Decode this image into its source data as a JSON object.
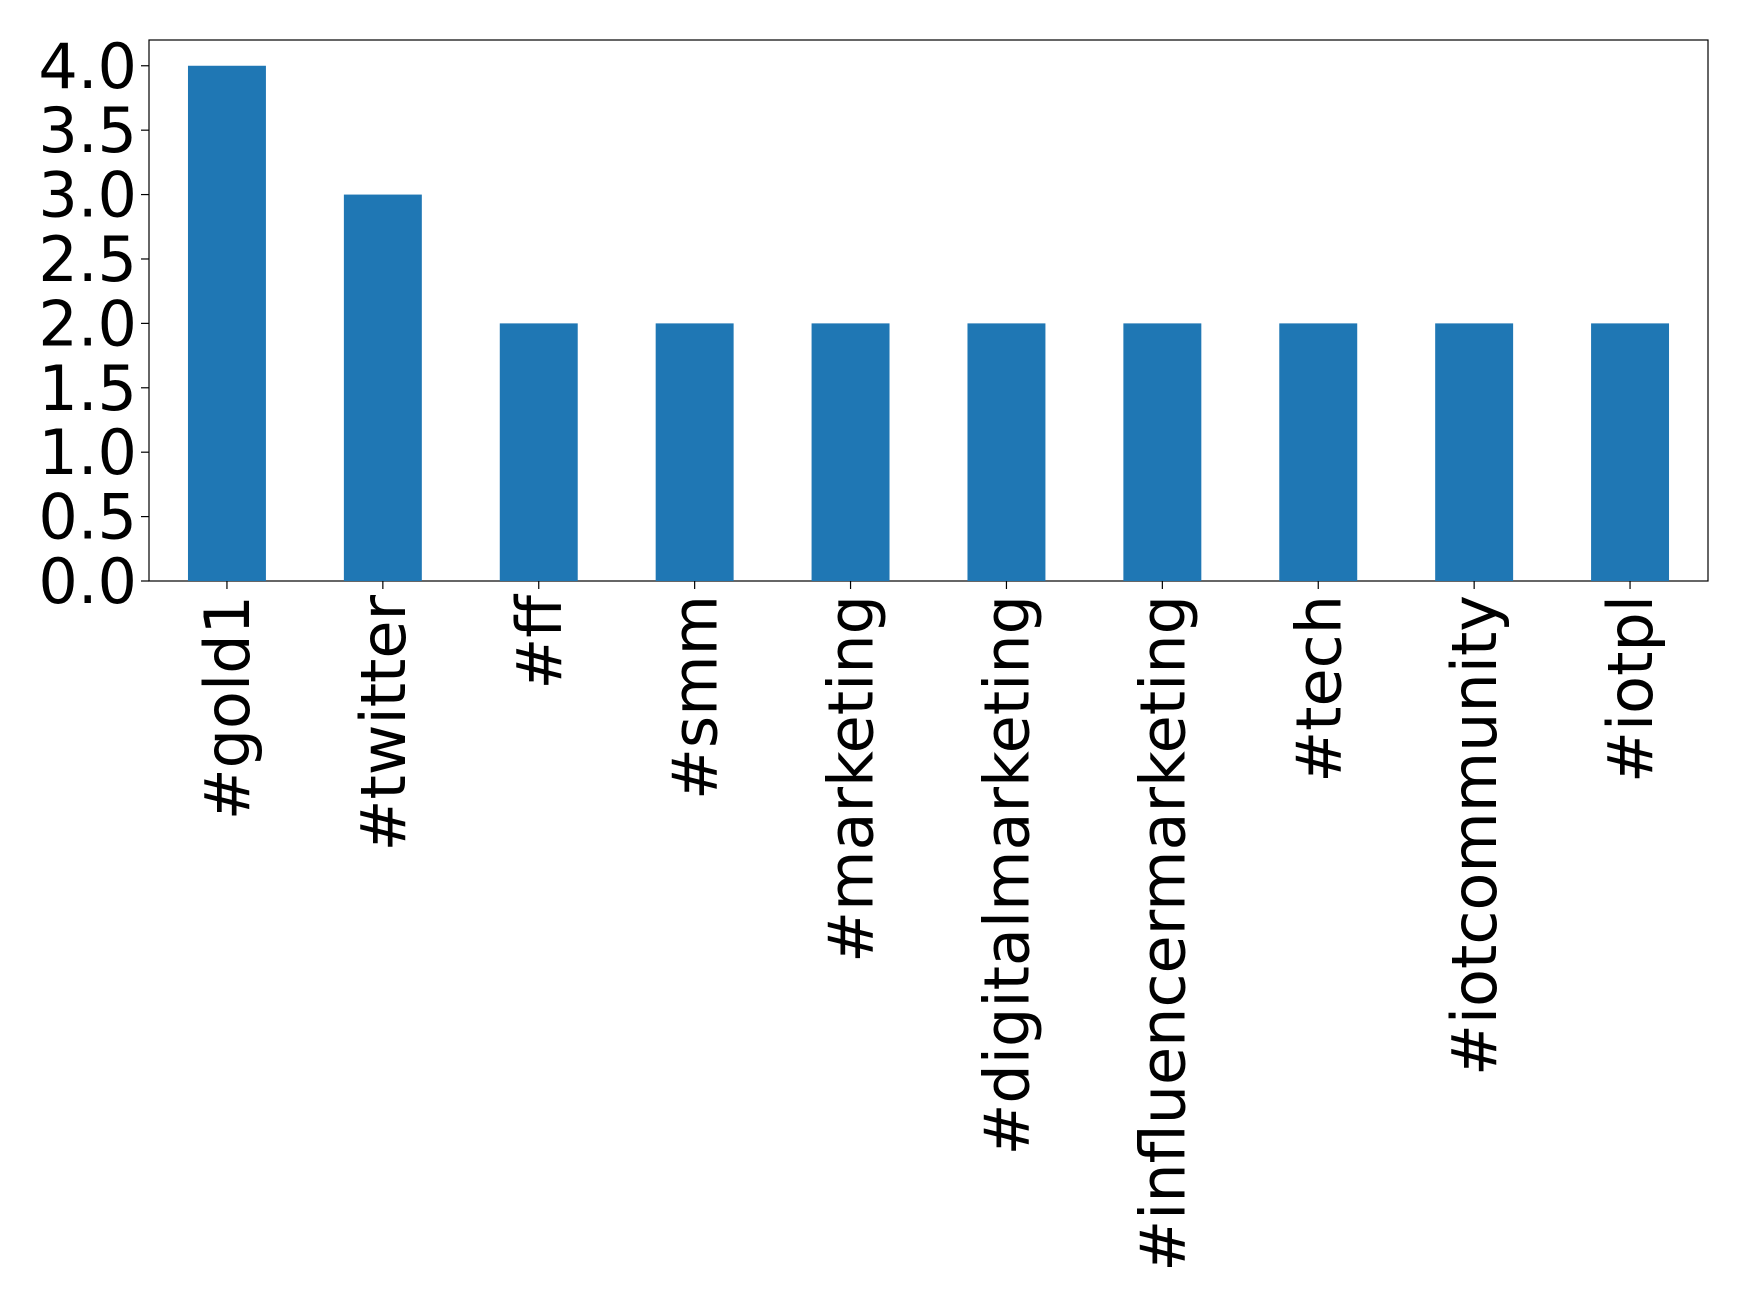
{
  "chart_data": {
    "type": "bar",
    "categories": [
      "#gold1",
      "#twitter",
      "#ff",
      "#smm",
      "#marketing",
      "#digitalmarketing",
      "#influencermarketing",
      "#tech",
      "#iotcommunity",
      "#iotpl"
    ],
    "values": [
      4,
      3,
      2,
      2,
      2,
      2,
      2,
      2,
      2,
      2
    ],
    "color": "#1f77b4",
    "ylim": [
      0,
      4.2
    ],
    "yticks": [
      {
        "value": 0,
        "label": "0.0"
      },
      0.5,
      {
        "value": 1,
        "label": "1.0"
      },
      1.5,
      {
        "value": 2,
        "label": "2.0"
      },
      2.5,
      {
        "value": 3,
        "label": "3.0"
      },
      3.5,
      {
        "value": 4,
        "label": "4.0"
      }
    ],
    "grid": false
  }
}
